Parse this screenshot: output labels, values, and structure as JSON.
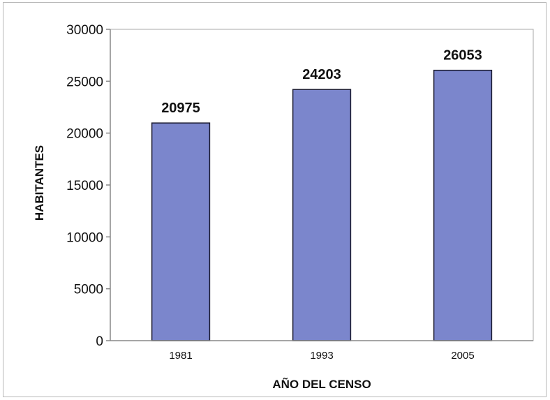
{
  "chart_data": {
    "type": "bar",
    "categories": [
      "1981",
      "1993",
      "2005"
    ],
    "values": [
      20975,
      24203,
      26053
    ],
    "data_labels": [
      "20975",
      "24203",
      "26053"
    ],
    "title": "",
    "xlabel": "AÑO DEL CENSO",
    "ylabel": "HABITANTES",
    "ylim": [
      0,
      30000
    ],
    "yticks": [
      0,
      5000,
      10000,
      15000,
      20000,
      25000,
      30000
    ],
    "grid": false,
    "legend": "none",
    "colors": {
      "bar_fill": "#7b86cc",
      "bar_stroke": "#1a1a2e",
      "axis": "#888888"
    }
  }
}
